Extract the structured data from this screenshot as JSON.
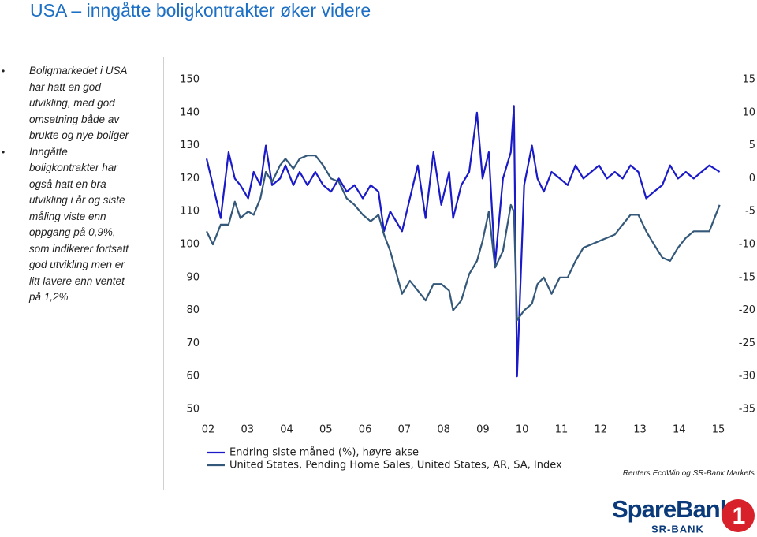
{
  "title": "USA – inngåtte boligkontrakter øker videre",
  "bullets": [
    "Boligmarkedet i USA har hatt en god utvikling, med god omsetning både av brukte og nye boliger",
    "Inngåtte boligkontrakter har også hatt en bra utvikling i år og siste måling viste enn oppgang på 0,9%, som indikerer fortsatt god utvikling men er litt lavere enn ventet på 1,2%"
  ],
  "chart_data": {
    "type": "line",
    "x": [
      2002.46,
      2002.62,
      2002.82,
      2003.02,
      2003.18,
      2003.32,
      2003.52,
      2003.66,
      2003.83,
      2003.97,
      2004.13,
      2004.33,
      2004.47,
      2004.67,
      2004.83,
      2005.03,
      2005.23,
      2005.43,
      2005.63,
      2005.83,
      2006.03,
      2006.23,
      2006.44,
      2006.64,
      2006.84,
      2006.98,
      2007.14,
      2007.44,
      2007.64,
      2007.84,
      2008.04,
      2008.24,
      2008.44,
      2008.64,
      2008.74,
      2008.95,
      2009.15,
      2009.35,
      2009.49,
      2009.65,
      2009.81,
      2010.01,
      2010.21,
      2010.29,
      2010.37,
      2010.55,
      2010.75,
      2010.89,
      2011.05,
      2011.25,
      2011.46,
      2011.66,
      2011.86,
      2012.06,
      2012.26,
      2012.46,
      2012.66,
      2012.86,
      2013.06,
      2013.26,
      2013.46,
      2013.66,
      2013.86,
      2014.07,
      2014.27,
      2014.47,
      2014.67,
      2014.87,
      2015.07,
      2015.27,
      2015.53
    ],
    "series": [
      {
        "name": "Endring siste måned (%), høyre akse",
        "color": "#1a1ac8",
        "axis": "y2",
        "values": [
          3,
          -1,
          -6,
          4,
          0,
          -1,
          -3,
          1,
          -1,
          5,
          -1,
          0,
          2,
          -1,
          1,
          -1,
          1,
          -1,
          -2,
          0,
          -2,
          -1,
          -3,
          -1,
          -2,
          -8,
          -5,
          -8,
          -3,
          2,
          -6,
          4,
          -4,
          1,
          -6,
          -1,
          1,
          10,
          0,
          4,
          -13,
          0,
          4,
          11,
          -30,
          -1,
          5,
          0,
          -2,
          1,
          0,
          -1,
          2,
          0,
          1,
          2,
          0,
          1,
          0,
          2,
          1,
          -3,
          -2,
          -1,
          2,
          0,
          1,
          0,
          1,
          2,
          1
        ]
      },
      {
        "name": "United States, Pending Home Sales, United States, AR, SA, Index",
        "color": "#34587a",
        "values": [
          104,
          100,
          106,
          106,
          113,
          108,
          110,
          109,
          114,
          122,
          119,
          124,
          126,
          123,
          126,
          127,
          127,
          124,
          120,
          119,
          114,
          112,
          109,
          107,
          109,
          103,
          98,
          85,
          89,
          86,
          83,
          88,
          88,
          86,
          80,
          83,
          91,
          95,
          101,
          110,
          93,
          98,
          112,
          110,
          77,
          80,
          82,
          88,
          90,
          85,
          90,
          90,
          95,
          99,
          100,
          101,
          102,
          103,
          106,
          109,
          109,
          104,
          100,
          96,
          95,
          99,
          102,
          104,
          104,
          104,
          112
        ]
      }
    ],
    "xlim": [
      2002.4,
      2015.8
    ],
    "xticks": [
      {
        "value": 2002.5,
        "label": "02"
      },
      {
        "value": 2003.5,
        "label": "03"
      },
      {
        "value": 2004.5,
        "label": "04"
      },
      {
        "value": 2005.5,
        "label": "05"
      },
      {
        "value": 2006.5,
        "label": "06"
      },
      {
        "value": 2007.5,
        "label": "07"
      },
      {
        "value": 2008.5,
        "label": "08"
      },
      {
        "value": 2009.5,
        "label": "09"
      },
      {
        "value": 2010.5,
        "label": "10"
      },
      {
        "value": 2011.5,
        "label": "11"
      },
      {
        "value": 2012.5,
        "label": "12"
      },
      {
        "value": 2013.5,
        "label": "13"
      },
      {
        "value": 2014.5,
        "label": "14"
      },
      {
        "value": 2015.5,
        "label": "15"
      }
    ],
    "ylim": [
      50,
      150
    ],
    "yticks": [
      50,
      60,
      70,
      80,
      90,
      100,
      110,
      120,
      130,
      140,
      150
    ],
    "y2lim": [
      -35,
      15
    ],
    "y2ticks": [
      -35,
      -30,
      -25,
      -20,
      -15,
      -10,
      -5,
      0,
      5,
      10,
      15
    ],
    "grid": false,
    "legend": "bottom"
  },
  "source": "Reuters EcoWin og SR-Bank Markets",
  "logo": {
    "name": "SpareBank",
    "sub": "SR-BANK",
    "badge": "1"
  }
}
